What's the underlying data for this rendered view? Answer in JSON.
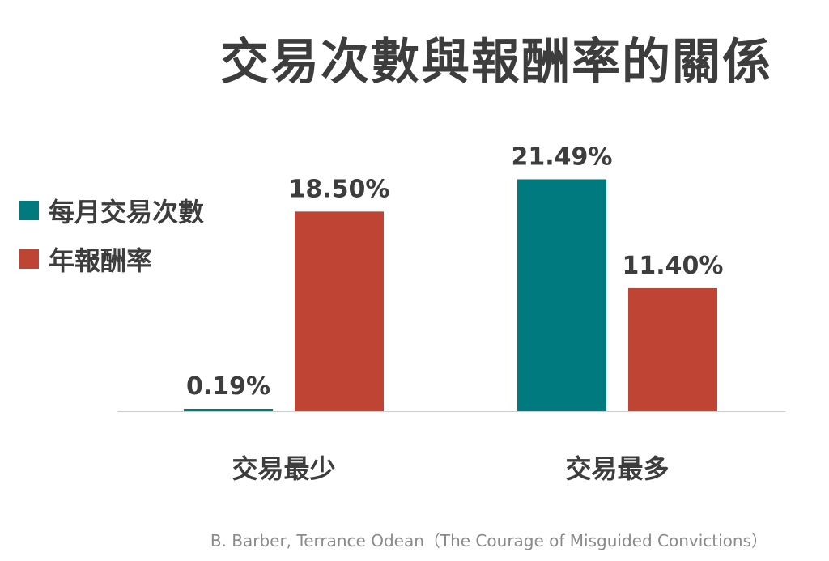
{
  "chart_data": {
    "type": "bar",
    "title": "交易次數與報酬率的關係",
    "categories": [
      "交易最少",
      "交易最多"
    ],
    "series": [
      {
        "name": "每月交易次數",
        "values": [
          0.19,
          21.49
        ],
        "labels": [
          "0.19%",
          "21.49%"
        ],
        "color": "#00797f"
      },
      {
        "name": "年報酬率",
        "values": [
          18.5,
          11.4
        ],
        "labels": [
          "18.50%",
          "11.40%"
        ],
        "color": "#c04434"
      }
    ],
    "ylim": [
      0,
      30
    ],
    "grid": false,
    "legend": "left"
  },
  "source": "B. Barber, Terrance Odean（The Courage of Misguided Convictions）"
}
